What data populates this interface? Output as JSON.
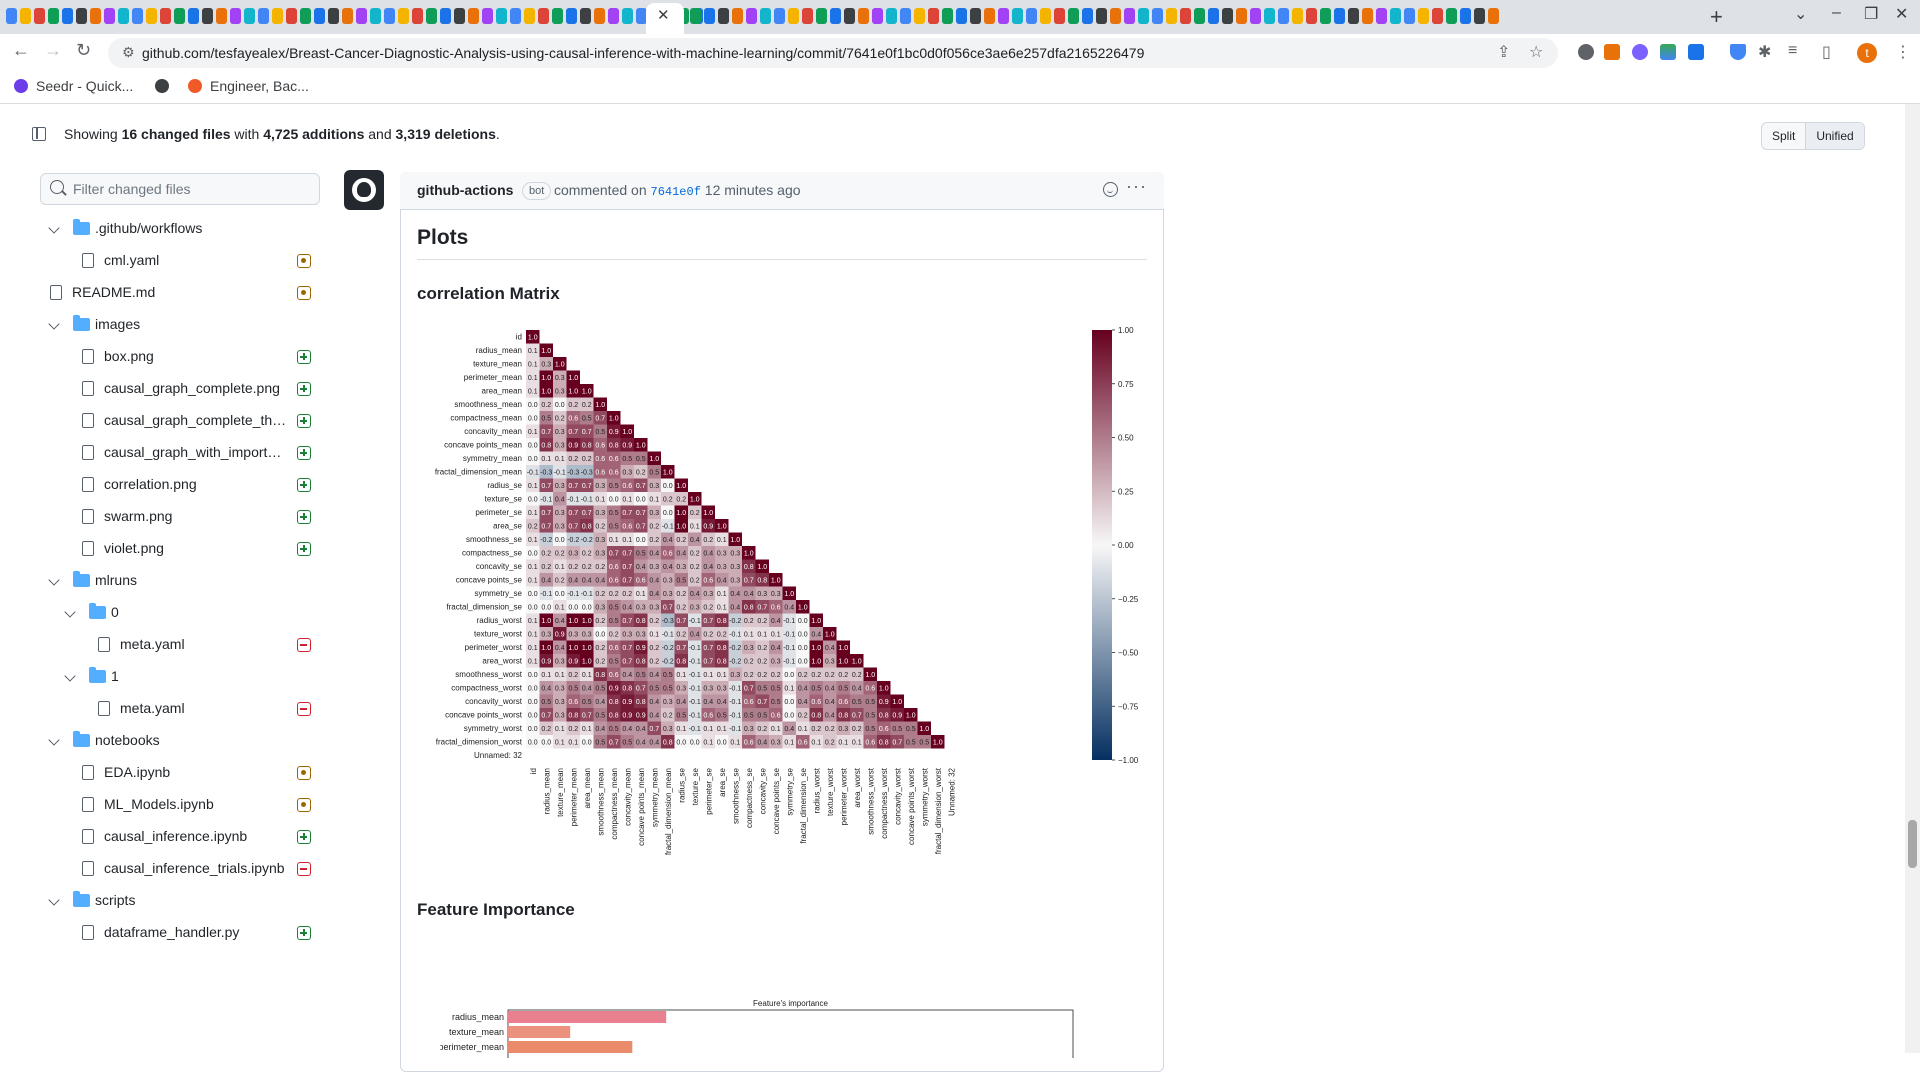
{
  "browser": {
    "url": "github.com/tesfayealex/Breast-Cancer-Diagnostic-Analysis-using-causal-inference-with-machine-learning/commit/7641e0f1bc0d0f056ce3ae6e257dfa2165226479",
    "bookmarks": [
      "Seedr - Quick...",
      "Engineer, Bac..."
    ],
    "profile_initial": "t"
  },
  "summary": {
    "prefix": "Showing ",
    "files": "16 changed files",
    "mid": " with ",
    "additions": "4,725 additions",
    "and": " and ",
    "deletions": "3,319 deletions",
    "suffix": "."
  },
  "view_toggle": {
    "split": "Split",
    "unified": "Unified"
  },
  "filter": {
    "placeholder": "Filter changed files"
  },
  "tree": [
    {
      "type": "folder",
      "label": ".github/workflows",
      "depth": 0
    },
    {
      "type": "file",
      "label": "cml.yaml",
      "depth": 1,
      "status": "mod"
    },
    {
      "type": "file",
      "label": "README.md",
      "depth": 0,
      "status": "mod"
    },
    {
      "type": "folder",
      "label": "images",
      "depth": 0
    },
    {
      "type": "file",
      "label": "box.png",
      "depth": 1,
      "status": "add"
    },
    {
      "type": "file",
      "label": "causal_graph_complete.png",
      "depth": 1,
      "status": "add"
    },
    {
      "type": "file",
      "label": "causal_graph_complete_th…",
      "depth": 1,
      "status": "add"
    },
    {
      "type": "file",
      "label": "causal_graph_with_import…",
      "depth": 1,
      "status": "add"
    },
    {
      "type": "file",
      "label": "correlation.png",
      "depth": 1,
      "status": "add"
    },
    {
      "type": "file",
      "label": "swarm.png",
      "depth": 1,
      "status": "add"
    },
    {
      "type": "file",
      "label": "violet.png",
      "depth": 1,
      "status": "add"
    },
    {
      "type": "folder",
      "label": "mlruns",
      "depth": 0
    },
    {
      "type": "folder",
      "label": "0",
      "depth": 1
    },
    {
      "type": "file",
      "label": "meta.yaml",
      "depth": 2,
      "status": "del"
    },
    {
      "type": "folder",
      "label": "1",
      "depth": 1
    },
    {
      "type": "file",
      "label": "meta.yaml",
      "depth": 2,
      "status": "del"
    },
    {
      "type": "folder",
      "label": "notebooks",
      "depth": 0
    },
    {
      "type": "file",
      "label": "EDA.ipynb",
      "depth": 1,
      "status": "mod"
    },
    {
      "type": "file",
      "label": "ML_Models.ipynb",
      "depth": 1,
      "status": "mod"
    },
    {
      "type": "file",
      "label": "causal_inference.ipynb",
      "depth": 1,
      "status": "add"
    },
    {
      "type": "file",
      "label": "causal_inference_trials.ipynb",
      "depth": 1,
      "status": "del"
    },
    {
      "type": "folder",
      "label": "scripts",
      "depth": 0
    },
    {
      "type": "file",
      "label": "dataframe_handler.py",
      "depth": 1,
      "status": "add"
    }
  ],
  "comment": {
    "author": "github-actions",
    "badge": "bot",
    "action": " commented on ",
    "sha": "7641e0f",
    "time": " 12 minutes ago",
    "heading": "Plots",
    "section1": "correlation Matrix",
    "section2": "Feature Importance"
  },
  "chart_data": [
    {
      "type": "heatmap",
      "title": "",
      "labels": [
        "id",
        "radius_mean",
        "texture_mean",
        "perimeter_mean",
        "area_mean",
        "smoothness_mean",
        "compactness_mean",
        "concavity_mean",
        "concave points_mean",
        "symmetry_mean",
        "fractal_dimension_mean",
        "radius_se",
        "texture_se",
        "perimeter_se",
        "area_se",
        "smoothness_se",
        "compactness_se",
        "concavity_se",
        "concave points_se",
        "symmetry_se",
        "fractal_dimension_se",
        "radius_worst",
        "texture_worst",
        "perimeter_worst",
        "area_worst",
        "smoothness_worst",
        "compactness_worst",
        "concavity_worst",
        "concave points_worst",
        "symmetry_worst",
        "fractal_dimension_worst",
        "Unnamed: 32"
      ],
      "lower_triangle": [
        [
          1.0
        ],
        [
          0.1,
          1.0
        ],
        [
          0.1,
          0.3,
          1.0
        ],
        [
          0.1,
          1.0,
          0.3,
          1.0
        ],
        [
          0.1,
          1.0,
          0.3,
          1.0,
          1.0
        ],
        [
          -0.0,
          0.2,
          -0.0,
          0.2,
          0.2,
          1.0
        ],
        [
          0.0,
          0.5,
          0.2,
          0.6,
          0.5,
          0.7,
          1.0
        ],
        [
          0.1,
          0.7,
          0.3,
          0.7,
          0.7,
          0.5,
          0.9,
          1.0
        ],
        [
          0.0,
          0.8,
          0.3,
          0.9,
          0.8,
          0.6,
          0.8,
          0.9,
          1.0
        ],
        [
          -0.0,
          0.1,
          0.1,
          0.2,
          0.2,
          0.6,
          0.6,
          0.5,
          0.5,
          1.0
        ],
        [
          -0.1,
          -0.3,
          -0.1,
          -0.3,
          -0.3,
          0.6,
          0.6,
          0.3,
          0.2,
          0.5,
          1.0
        ],
        [
          0.1,
          0.7,
          0.3,
          0.7,
          0.7,
          0.3,
          0.5,
          0.6,
          0.7,
          0.3,
          0.0,
          1.0
        ],
        [
          -0.0,
          -0.1,
          0.4,
          -0.1,
          -0.1,
          0.1,
          0.0,
          0.1,
          0.0,
          0.1,
          0.2,
          0.2,
          1.0
        ],
        [
          0.1,
          0.7,
          0.3,
          0.7,
          0.7,
          0.3,
          0.5,
          0.7,
          0.7,
          0.3,
          0.0,
          1.0,
          0.2,
          1.0
        ],
        [
          0.2,
          0.7,
          0.3,
          0.7,
          0.8,
          0.2,
          0.5,
          0.6,
          0.7,
          0.2,
          -0.1,
          1.0,
          0.1,
          0.9,
          1.0
        ],
        [
          0.1,
          -0.2,
          0.0,
          -0.2,
          -0.2,
          0.3,
          0.1,
          0.1,
          0.0,
          0.2,
          0.4,
          0.2,
          0.4,
          0.2,
          0.1,
          1.0
        ],
        [
          0.0,
          0.2,
          0.2,
          0.3,
          0.2,
          0.3,
          0.7,
          0.7,
          0.5,
          0.4,
          0.6,
          0.4,
          0.2,
          0.4,
          0.3,
          0.3,
          1.0
        ],
        [
          0.1,
          0.2,
          0.1,
          0.2,
          0.2,
          0.2,
          0.6,
          0.7,
          0.4,
          0.3,
          0.4,
          0.3,
          0.2,
          0.4,
          0.3,
          0.3,
          0.8,
          1.0
        ],
        [
          0.1,
          0.4,
          0.2,
          0.4,
          0.4,
          0.4,
          0.6,
          0.7,
          0.6,
          0.4,
          0.3,
          0.5,
          0.2,
          0.6,
          0.4,
          0.3,
          0.7,
          0.8,
          1.0
        ],
        [
          -0.0,
          -0.1,
          0.0,
          -0.1,
          -0.1,
          0.2,
          0.2,
          0.2,
          0.1,
          0.4,
          0.3,
          0.2,
          0.4,
          0.3,
          0.1,
          0.4,
          0.4,
          0.3,
          0.3,
          1.0
        ],
        [
          0.0,
          -0.0,
          0.1,
          -0.0,
          -0.0,
          0.3,
          0.5,
          0.4,
          0.3,
          0.3,
          0.7,
          0.2,
          0.3,
          0.2,
          0.1,
          0.4,
          0.8,
          0.7,
          0.6,
          0.4,
          1.0
        ],
        [
          0.1,
          1.0,
          0.4,
          1.0,
          1.0,
          0.2,
          0.5,
          0.7,
          0.8,
          0.2,
          -0.3,
          0.7,
          -0.1,
          0.7,
          0.8,
          -0.2,
          0.2,
          0.2,
          0.4,
          -0.1,
          -0.0,
          1.0
        ],
        [
          0.1,
          0.3,
          0.9,
          0.3,
          0.3,
          0.0,
          0.2,
          0.3,
          0.3,
          0.1,
          -0.1,
          0.2,
          0.4,
          0.2,
          0.2,
          -0.1,
          0.1,
          0.1,
          0.1,
          -0.1,
          -0.0,
          0.4,
          1.0
        ],
        [
          0.1,
          1.0,
          0.4,
          1.0,
          1.0,
          0.2,
          0.6,
          0.7,
          0.9,
          0.2,
          -0.2,
          0.7,
          -0.1,
          0.7,
          0.8,
          -0.2,
          0.3,
          0.2,
          0.4,
          -0.1,
          -0.0,
          1.0,
          0.4,
          1.0
        ],
        [
          0.1,
          0.9,
          0.3,
          0.9,
          1.0,
          0.2,
          0.5,
          0.7,
          0.8,
          0.2,
          -0.2,
          0.8,
          -0.1,
          0.7,
          0.8,
          -0.2,
          0.2,
          0.2,
          0.3,
          -0.1,
          -0.0,
          1.0,
          0.3,
          1.0,
          1.0
        ],
        [
          -0.0,
          0.1,
          0.1,
          0.2,
          0.1,
          0.8,
          0.6,
          0.4,
          0.5,
          0.4,
          0.5,
          0.1,
          -0.1,
          0.1,
          0.1,
          0.3,
          0.2,
          0.2,
          0.2,
          -0.0,
          0.2,
          0.2,
          0.2,
          0.2,
          0.2,
          1.0
        ],
        [
          -0.0,
          0.4,
          0.3,
          0.5,
          0.4,
          0.5,
          0.9,
          0.8,
          0.7,
          0.5,
          0.5,
          0.3,
          -0.1,
          0.3,
          0.3,
          -0.1,
          0.7,
          0.5,
          0.5,
          0.1,
          0.4,
          0.5,
          0.4,
          0.5,
          0.4,
          0.6,
          1.0
        ],
        [
          0.0,
          0.5,
          0.3,
          0.6,
          0.5,
          0.4,
          0.8,
          0.9,
          0.8,
          0.4,
          0.3,
          0.4,
          -0.1,
          0.4,
          0.4,
          -0.1,
          0.6,
          0.7,
          0.5,
          0.0,
          0.4,
          0.6,
          0.4,
          0.6,
          0.5,
          0.5,
          0.9,
          1.0
        ],
        [
          0.0,
          0.7,
          0.3,
          0.8,
          0.7,
          0.5,
          0.8,
          0.9,
          0.9,
          0.4,
          0.2,
          0.5,
          -0.1,
          0.6,
          0.5,
          -0.1,
          0.5,
          0.5,
          0.6,
          -0.0,
          0.2,
          0.8,
          0.4,
          0.8,
          0.7,
          0.5,
          0.8,
          0.9,
          1.0
        ],
        [
          -0.0,
          0.2,
          0.1,
          0.2,
          0.1,
          0.4,
          0.5,
          0.4,
          0.4,
          0.7,
          0.3,
          0.1,
          -0.1,
          0.1,
          0.1,
          -0.1,
          0.3,
          0.2,
          0.1,
          0.4,
          0.1,
          0.2,
          0.2,
          0.3,
          0.2,
          0.5,
          0.6,
          0.5,
          0.5,
          1.0
        ],
        [
          -0.0,
          0.0,
          0.1,
          0.1,
          0.0,
          0.5,
          0.7,
          0.5,
          0.4,
          0.4,
          0.8,
          0.0,
          -0.0,
          0.1,
          0.0,
          0.1,
          0.6,
          0.4,
          0.3,
          0.1,
          0.6,
          0.1,
          0.2,
          0.1,
          0.1,
          0.6,
          0.8,
          0.7,
          0.5,
          0.5,
          1.0
        ],
        []
      ],
      "colorbar": {
        "min": -1.0,
        "max": 1.0,
        "ticks": [
          "1.00",
          "0.75",
          "0.50",
          "0.25",
          "0.00",
          "−0.25",
          "−0.50",
          "−0.75",
          "−1.00"
        ]
      },
      "colormap": [
        "#053061",
        "#f7f7f7",
        "#67001f"
      ]
    },
    {
      "type": "bar",
      "orientation": "horizontal",
      "title": "Feature's importance",
      "categories": [
        "radius_mean",
        "texture_mean",
        "perimeter_mean"
      ],
      "values": [
        0.28,
        0.11,
        0.22
      ],
      "colors": [
        "#e8808f",
        "#ec917d",
        "#e98a6a"
      ]
    }
  ]
}
